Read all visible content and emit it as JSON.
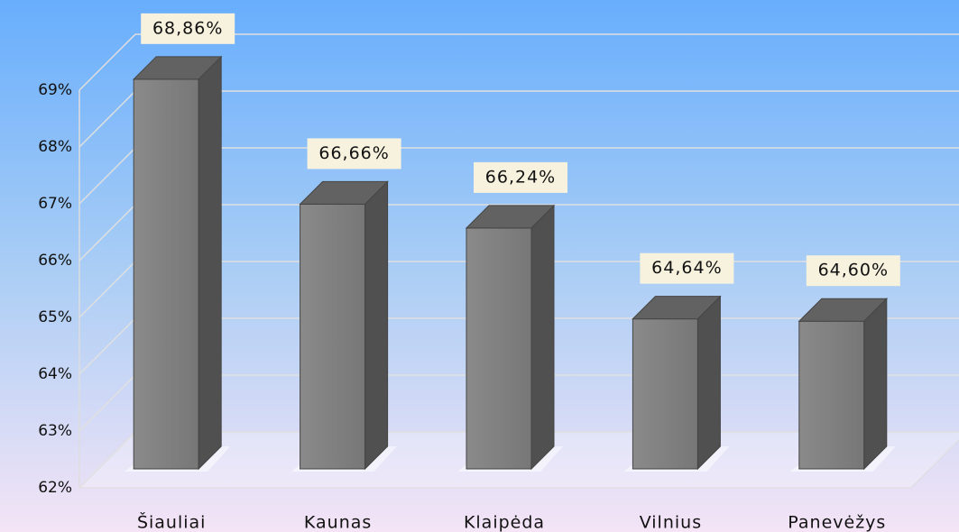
{
  "chart_data": {
    "type": "bar3d",
    "categories": [
      "Šiauliai",
      "Kaunas",
      "Klaipėda",
      "Vilnius",
      "Panevėžys"
    ],
    "values": [
      68.86,
      66.66,
      66.24,
      64.64,
      64.6
    ],
    "value_labels": [
      "68,86%",
      "66,66%",
      "66,24%",
      "64,64%",
      "64,60%"
    ],
    "color": "#808080",
    "ylim": [
      62,
      69
    ],
    "yticks": [
      {
        "value": 62,
        "label": "62%"
      },
      {
        "value": 63,
        "label": "63%"
      },
      {
        "value": 64,
        "label": "64%"
      },
      {
        "value": 65,
        "label": "65%"
      },
      {
        "value": 66,
        "label": "66%"
      },
      {
        "value": 67,
        "label": "67%"
      },
      {
        "value": 68,
        "label": "68%"
      },
      {
        "value": 69,
        "label": "69%"
      }
    ],
    "grid": true
  }
}
